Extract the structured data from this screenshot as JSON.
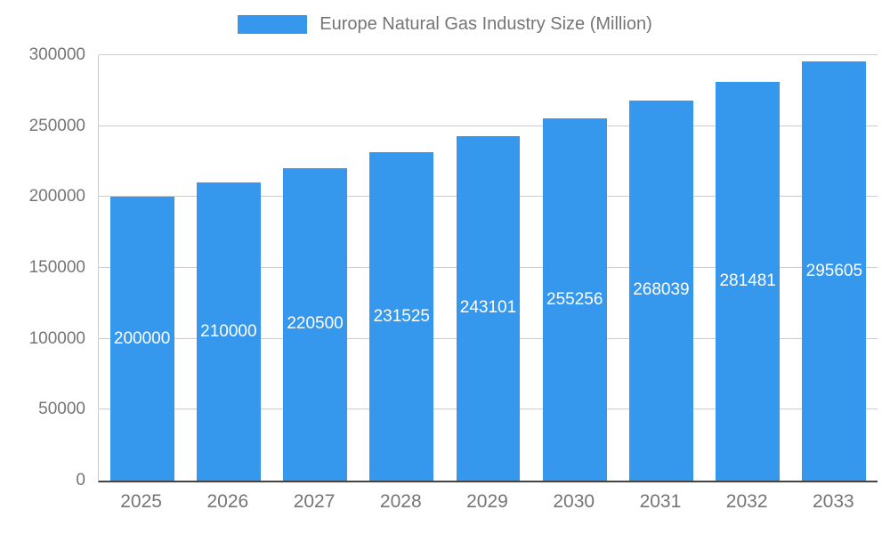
{
  "legend": {
    "label": "Europe Natural Gas Industry Size (Million)"
  },
  "chart_data": {
    "type": "bar",
    "title": "Europe Natural Gas Industry Size (Million)",
    "categories": [
      "2025",
      "2026",
      "2027",
      "2028",
      "2029",
      "2030",
      "2031",
      "2032",
      "2033"
    ],
    "values": [
      200000,
      210000,
      220500,
      231525,
      243101,
      255256,
      268039,
      281481,
      295605
    ],
    "series": [
      {
        "name": "Europe Natural Gas Industry Size (Million)",
        "values": [
          200000,
          210000,
          220500,
          231525,
          243101,
          255256,
          268039,
          281481,
          295605
        ]
      }
    ],
    "xlabel": "",
    "ylabel": "",
    "ylim": [
      0,
      300000
    ],
    "yticks": [
      0,
      50000,
      100000,
      150000,
      200000,
      250000,
      300000
    ],
    "grid": true,
    "legend_position": "top",
    "bar_labels_visible": true
  },
  "colors": {
    "bar": "#3598ec",
    "bar_label": "#ffffff",
    "grid": "#cccccc",
    "axis_line": "#444444",
    "tick_text": "#757575"
  }
}
